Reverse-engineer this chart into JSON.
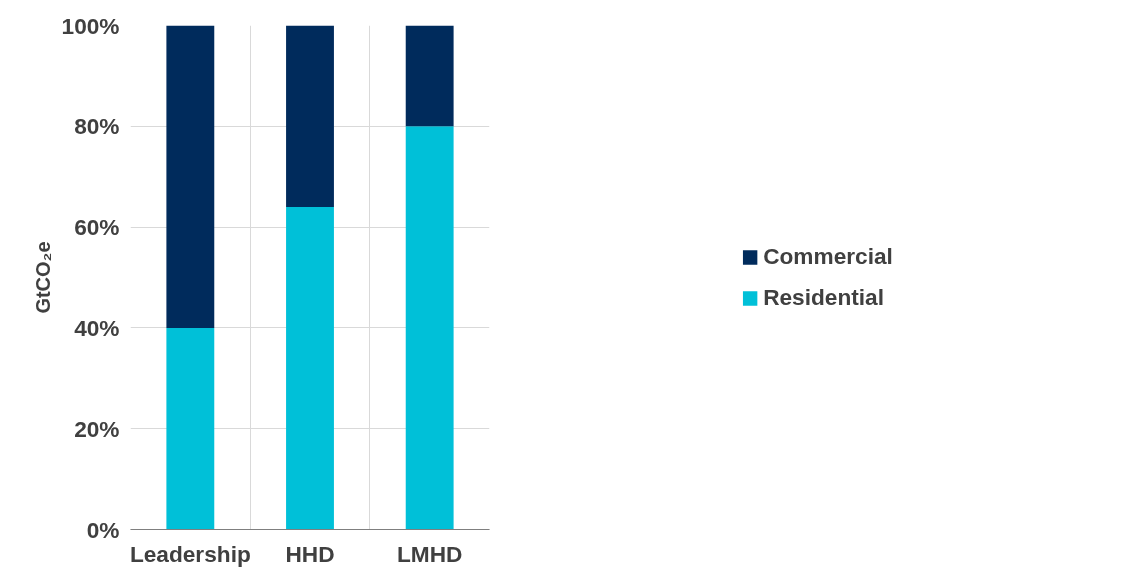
{
  "chart_data": {
    "type": "bar",
    "stacked": true,
    "ylabel": "GtCO₂e",
    "categories": [
      "Leadership",
      "HHD",
      "LMHD"
    ],
    "series": [
      {
        "name": "Residential",
        "color": "#00c0d8",
        "values": [
          40,
          64,
          80
        ]
      },
      {
        "name": "Commercial",
        "color": "#002b5c",
        "values": [
          60,
          36,
          20
        ]
      }
    ],
    "ylim": [
      0,
      100
    ],
    "yticks": [
      {
        "value": 0,
        "label": "0%"
      },
      {
        "value": 20,
        "label": "20%"
      },
      {
        "value": 40,
        "label": "40%"
      },
      {
        "value": 60,
        "label": "60%"
      },
      {
        "value": 80,
        "label": "80%"
      },
      {
        "value": 100,
        "label": "100%"
      }
    ],
    "grid": true,
    "legend": "right"
  }
}
